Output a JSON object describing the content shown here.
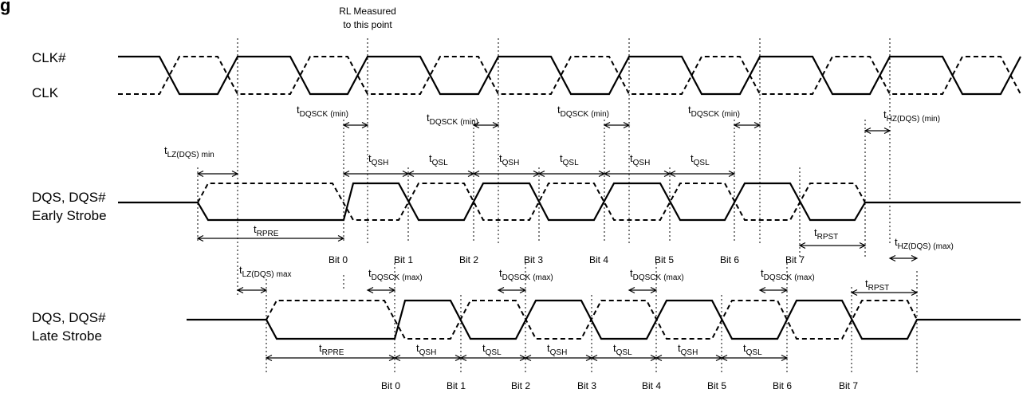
{
  "heading": "g",
  "note": [
    "RL Measured",
    "to this point"
  ],
  "signals": {
    "clk_n": "CLK#",
    "clk": "CLK",
    "early_1": "DQS, DQS#",
    "early_2": "Early Strobe",
    "late_1": "DQS, DQS#",
    "late_2": "Late Strobe"
  },
  "early": {
    "bits": [
      "Bit 0",
      "Bit 1",
      "Bit 2",
      "Bit 3",
      "Bit 4",
      "Bit 5",
      "Bit 6",
      "Bit 7"
    ],
    "dqsck_main": "DQSCK",
    "dqsck_sub": "(min)",
    "lz_main": "LZ(DQS)",
    "lz_sub": "min",
    "hz_main": "HZ(DQS)",
    "hz_sub": "(min)",
    "rpre": "RPRE",
    "rpst": "RPST",
    "qsh": "QSH",
    "qsl": "QSL"
  },
  "late": {
    "bits": [
      "Bit 0",
      "Bit 1",
      "Bit 2",
      "Bit 3",
      "Bit 4",
      "Bit 5",
      "Bit 6",
      "Bit 7"
    ],
    "dqsck_main": "DQSCK",
    "dqsck_sub": "(max)",
    "lz_main": "LZ(DQS)",
    "lz_sub": "max",
    "hz_main": "HZ(DQS)",
    "hz_sub": "(max)",
    "rpre": "RPRE",
    "rpst": "RPST",
    "qsh": "QSH",
    "qsl": "QSL"
  },
  "t": "t"
}
